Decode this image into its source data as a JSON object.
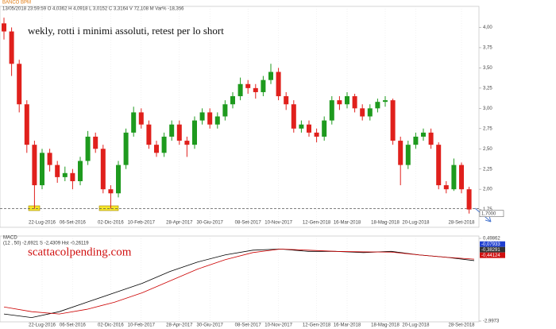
{
  "chart_data": [
    {
      "type": "candlestick",
      "title": "BANCO BPM",
      "subtitle": "13/05/2018  23:59:59  O 4,0362  H 4,0918  L 3,0152  C 3,3164  V 72,108 M  Var% -18,356",
      "annotation": "wekly, rotti i minimi assoluti, retest per lo short",
      "categories": [
        null,
        null,
        null,
        null,
        null,
        "22-Lug-2016",
        null,
        null,
        null,
        "06-Set-2016",
        null,
        null,
        null,
        null,
        "02-Dic-2016",
        null,
        null,
        null,
        "10-Feb-2017",
        null,
        null,
        null,
        null,
        "28-Apr-2017",
        null,
        null,
        null,
        "30-Giu-2017",
        null,
        null,
        null,
        null,
        "08-Set-2017",
        null,
        null,
        null,
        "10-Nov-2017",
        null,
        null,
        null,
        null,
        "12-Gen-2018",
        null,
        null,
        null,
        "16-Mar-2018",
        null,
        null,
        null,
        null,
        "18-Mag-2018",
        null,
        null,
        null,
        "20-Lug-2018",
        null,
        null,
        null,
        null,
        null,
        "28-Set-2018",
        null
      ],
      "open": [
        4.05,
        3.95,
        3.55,
        3.05,
        2.55,
        2.05,
        2.45,
        2.3,
        2.15,
        2.2,
        2.1,
        2.35,
        2.65,
        2.5,
        2.0,
        1.95,
        2.3,
        2.7,
        2.95,
        2.8,
        2.55,
        2.45,
        2.65,
        2.8,
        2.6,
        2.55,
        2.85,
        2.95,
        2.8,
        2.9,
        3.05,
        3.15,
        3.3,
        3.25,
        3.2,
        3.35,
        3.45,
        3.15,
        3.05,
        2.75,
        2.8,
        2.7,
        2.65,
        2.85,
        3.1,
        3.05,
        3.15,
        3.0,
        2.9,
        3.0,
        3.08,
        3.1,
        2.6,
        2.3,
        2.55,
        2.65,
        2.7,
        2.55,
        2.05,
        2.0,
        2.3,
        2.0
      ],
      "high": [
        4.12,
        4.0,
        3.6,
        3.1,
        2.6,
        2.5,
        2.5,
        2.35,
        2.28,
        2.25,
        2.4,
        2.72,
        2.7,
        2.55,
        2.05,
        2.35,
        2.75,
        3.02,
        3.0,
        2.85,
        2.6,
        2.7,
        2.85,
        2.85,
        2.65,
        2.9,
        3.0,
        3.0,
        2.95,
        3.1,
        3.2,
        3.38,
        3.35,
        3.3,
        3.4,
        3.55,
        3.5,
        3.2,
        3.1,
        2.85,
        2.85,
        2.75,
        2.9,
        3.15,
        3.15,
        3.2,
        3.18,
        3.05,
        3.05,
        3.12,
        3.15,
        3.12,
        2.65,
        2.6,
        2.7,
        2.75,
        2.75,
        2.58,
        2.1,
        2.38,
        2.33,
        2.03
      ],
      "low": [
        3.85,
        3.4,
        2.95,
        2.45,
        1.76,
        2.0,
        2.22,
        2.08,
        2.1,
        2.0,
        2.05,
        2.3,
        2.45,
        1.95,
        1.76,
        1.9,
        2.25,
        2.65,
        2.75,
        2.5,
        2.4,
        2.4,
        2.6,
        2.55,
        2.4,
        2.5,
        2.8,
        2.75,
        2.75,
        2.85,
        3.0,
        3.1,
        3.18,
        3.12,
        3.15,
        3.3,
        3.1,
        2.98,
        2.7,
        2.7,
        2.65,
        2.58,
        2.6,
        2.8,
        2.98,
        3.0,
        2.95,
        2.85,
        2.85,
        2.95,
        3.02,
        2.55,
        2.05,
        2.25,
        2.5,
        2.6,
        2.5,
        2.0,
        1.95,
        1.98,
        1.95,
        1.7
      ],
      "close": [
        3.95,
        3.55,
        3.05,
        2.55,
        2.05,
        2.45,
        2.3,
        2.15,
        2.2,
        2.1,
        2.35,
        2.65,
        2.5,
        2.0,
        1.95,
        2.3,
        2.7,
        2.95,
        2.8,
        2.55,
        2.45,
        2.65,
        2.8,
        2.6,
        2.55,
        2.85,
        2.95,
        2.8,
        2.9,
        3.05,
        3.15,
        3.3,
        3.25,
        3.2,
        3.35,
        3.45,
        3.15,
        3.05,
        2.75,
        2.8,
        2.7,
        2.65,
        2.85,
        3.1,
        3.05,
        3.15,
        3.0,
        2.9,
        3.0,
        3.08,
        3.1,
        2.6,
        2.3,
        2.55,
        2.65,
        2.7,
        2.55,
        2.05,
        2.0,
        2.3,
        2.0,
        1.75
      ],
      "up_color": "#1e9a1e",
      "down_color": "#e0201c",
      "ylim": [
        1.55,
        4.26
      ],
      "yticks": [
        {
          "value": 1.75,
          "label": "1,75"
        },
        {
          "value": 2.0,
          "label": "2,00"
        },
        {
          "value": 2.25,
          "label": "2,25"
        },
        {
          "value": 2.5,
          "label": "2,50"
        },
        {
          "value": 2.75,
          "label": "2,75"
        },
        {
          "value": 3.0,
          "label": "3,00"
        },
        {
          "value": 3.25,
          "label": "3,25"
        },
        {
          "value": 3.5,
          "label": "3,50"
        },
        {
          "value": 3.75,
          "label": "3,75"
        },
        {
          "value": 4.0,
          "label": "4,00"
        }
      ],
      "hline": 1.76,
      "price_label": {
        "value": 1.7,
        "label": "1,7000"
      }
    },
    {
      "type": "line",
      "title": "MACD",
      "subtitle": "(12 , 50)   -2,6921   S   -2,4309   Hst   -0,26119",
      "watermark": "scattacolpending.com",
      "series": [
        {
          "name": "MACD",
          "color": "#000000",
          "values": [
            -2.7,
            -2.85,
            -2.6,
            -2.2,
            -1.8,
            -1.4,
            -0.9,
            -0.5,
            -0.2,
            0.0,
            0.05,
            -0.05,
            -0.05,
            -0.1,
            -0.05,
            -0.2,
            -0.3,
            -0.44
          ]
        },
        {
          "name": "S",
          "color": "#cc0000",
          "values": [
            -2.4,
            -2.6,
            -2.7,
            -2.5,
            -2.2,
            -1.8,
            -1.3,
            -0.8,
            -0.4,
            -0.1,
            0.05,
            0.0,
            -0.05,
            -0.07,
            -0.08,
            -0.2,
            -0.3,
            -0.38
          ]
        }
      ],
      "ylim": [
        -2.9973,
        0.49862
      ],
      "yticks": [
        {
          "value": 0.49862,
          "label": "0,49862"
        },
        {
          "value": -2.9973,
          "label": "-2,9973"
        }
      ],
      "markers": [
        {
          "value": -0.07933,
          "label": "-0,07933",
          "color": "#1f3fd0"
        },
        {
          "value": -0.38291,
          "label": "-0,38291",
          "color": "#333333"
        },
        {
          "value": -0.44124,
          "label": "-0,44124",
          "color": "#d01010"
        }
      ]
    }
  ]
}
